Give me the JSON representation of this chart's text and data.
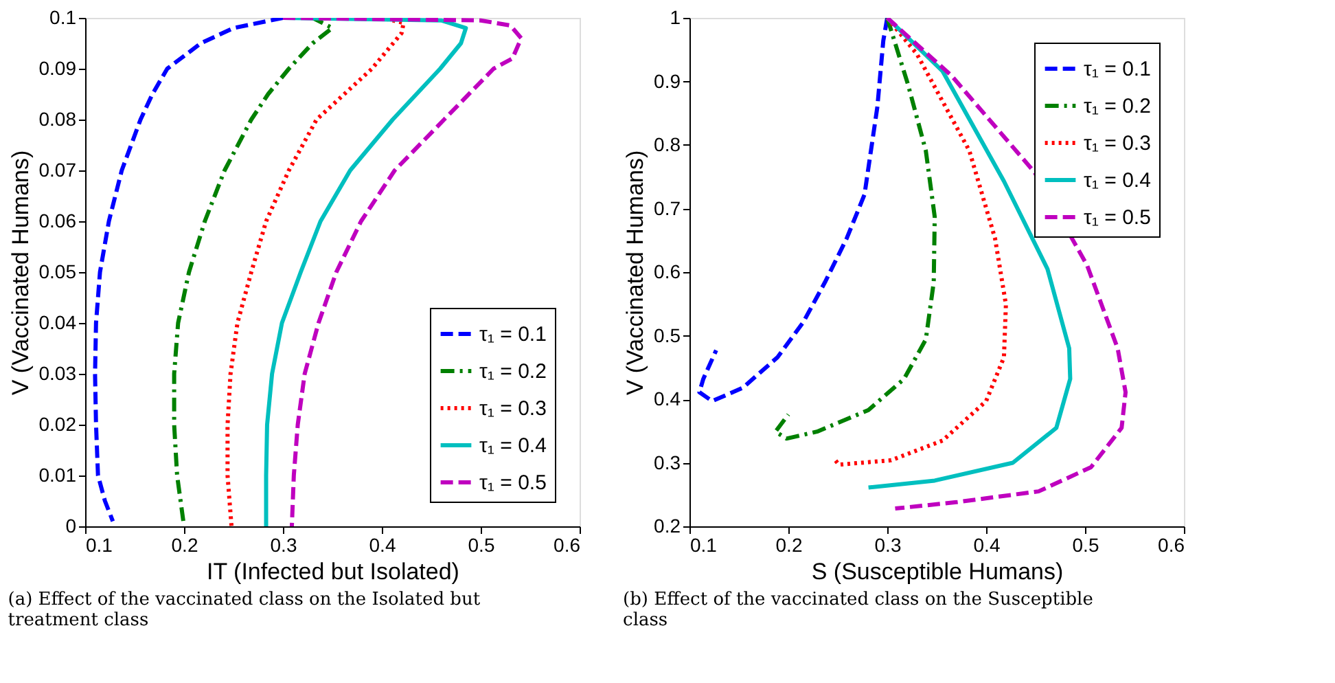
{
  "chart_data": [
    {
      "type": "line",
      "xlabel": "IT (Infected but Isolated)",
      "ylabel": "V (Vaccinated Humans)",
      "xlim": [
        0.1,
        0.6
      ],
      "ylim": [
        0,
        0.1
      ],
      "xticks": [
        0.1,
        0.2,
        0.3,
        0.4,
        0.5,
        0.6
      ],
      "yticks": [
        0,
        0.01,
        0.02,
        0.03,
        0.04,
        0.05,
        0.06,
        0.07,
        0.08,
        0.09,
        0.1
      ],
      "legend": "bottom right",
      "grid": false,
      "marker": "none",
      "annotations": [
        "(a) Effect of the vaccinated class on the Isolated but treatment class"
      ],
      "series": [
        {
          "name": "τ₁ = 0.1",
          "color": "#0000ff",
          "line_style": "dashed",
          "x": [
            0.3,
            0.25,
            0.217,
            0.183,
            0.168,
            0.156,
            0.137,
            0.124,
            0.115,
            0.111,
            0.11,
            0.111,
            0.113,
            0.12,
            0.128
          ],
          "values": [
            0.1,
            0.098,
            0.095,
            0.09,
            0.085,
            0.08,
            0.07,
            0.06,
            0.05,
            0.04,
            0.03,
            0.02,
            0.01,
            0.005,
            0.001
          ]
        },
        {
          "name": "τ₁ = 0.2",
          "color": "#008000",
          "line_style": "dashdot",
          "x": [
            0.3,
            0.33,
            0.35,
            0.33,
            0.306,
            0.285,
            0.268,
            0.241,
            0.221,
            0.205,
            0.194,
            0.19,
            0.19,
            0.193,
            0.2
          ],
          "values": [
            0.1,
            0.1,
            0.098,
            0.095,
            0.09,
            0.085,
            0.08,
            0.07,
            0.06,
            0.05,
            0.04,
            0.03,
            0.02,
            0.01,
            0
          ]
        },
        {
          "name": "τ₁ = 0.3",
          "color": "#ff0000",
          "line_style": "dotted",
          "x": [
            0.3,
            0.4,
            0.422,
            0.42,
            0.39,
            0.334,
            0.306,
            0.283,
            0.268,
            0.254,
            0.247,
            0.244,
            0.244,
            0.248
          ],
          "values": [
            0.1,
            0.1,
            0.099,
            0.097,
            0.09,
            0.08,
            0.07,
            0.06,
            0.05,
            0.04,
            0.03,
            0.02,
            0.01,
            0
          ]
        },
        {
          "name": "τ₁ = 0.4",
          "color": "#00bfbf",
          "line_style": "solid",
          "x": [
            0.3,
            0.46,
            0.485,
            0.48,
            0.459,
            0.411,
            0.368,
            0.338,
            0.318,
            0.299,
            0.289,
            0.284,
            0.283,
            0.283
          ],
          "values": [
            0.1,
            0.0995,
            0.098,
            0.095,
            0.09,
            0.08,
            0.07,
            0.06,
            0.05,
            0.04,
            0.03,
            0.02,
            0.01,
            0
          ]
        },
        {
          "name": "τ₁ = 0.5",
          "color": "#bf00bf",
          "line_style": "dashed",
          "x": [
            0.3,
            0.5,
            0.53,
            0.541,
            0.532,
            0.513,
            0.463,
            0.413,
            0.379,
            0.354,
            0.336,
            0.322,
            0.315,
            0.311,
            0.309
          ],
          "values": [
            0.1,
            0.0995,
            0.0985,
            0.096,
            0.092,
            0.09,
            0.08,
            0.07,
            0.06,
            0.05,
            0.04,
            0.03,
            0.02,
            0.01,
            0
          ]
        }
      ]
    },
    {
      "type": "line",
      "xlabel": "S (Susceptible Humans)",
      "ylabel": "V (Vaccinated Humans)",
      "xlim": [
        0.1,
        0.6
      ],
      "ylim": [
        0.2,
        1
      ],
      "xticks": [
        0.1,
        0.2,
        0.3,
        0.4,
        0.5,
        0.6
      ],
      "yticks": [
        0.2,
        0.3,
        0.4,
        0.5,
        0.6,
        0.7,
        0.8,
        0.9,
        1
      ],
      "legend": "top right",
      "grid": false,
      "marker": "none",
      "annotations": [
        "(b) Effect of the vaccinated class on the Susceptible class"
      ],
      "series": [
        {
          "name": "τ₁ = 0.1",
          "color": "#0000ff",
          "line_style": "dashed",
          "x": [
            0.3,
            0.296,
            0.29,
            0.277,
            0.259,
            0.237,
            0.215,
            0.189,
            0.154,
            0.123,
            0.11,
            0.114,
            0.127
          ],
          "values": [
            1,
            0.964,
            0.86,
            0.722,
            0.653,
            0.584,
            0.521,
            0.466,
            0.418,
            0.397,
            0.411,
            0.432,
            0.477
          ]
        },
        {
          "name": "τ₁ = 0.2",
          "color": "#008000",
          "line_style": "dashdot",
          "x": [
            0.3,
            0.321,
            0.339,
            0.348,
            0.347,
            0.339,
            0.317,
            0.281,
            0.229,
            0.198,
            0.187,
            0.2
          ],
          "values": [
            1,
            0.895,
            0.791,
            0.687,
            0.584,
            0.494,
            0.432,
            0.383,
            0.349,
            0.338,
            0.349,
            0.376
          ]
        },
        {
          "name": "τ₁ = 0.3",
          "color": "#ff0000",
          "line_style": "dotted",
          "x": [
            0.3,
            0.33,
            0.383,
            0.409,
            0.42,
            0.418,
            0.4,
            0.356,
            0.304,
            0.251,
            0.246
          ],
          "values": [
            1,
            0.943,
            0.791,
            0.653,
            0.549,
            0.466,
            0.397,
            0.335,
            0.304,
            0.297,
            0.307
          ]
        },
        {
          "name": "τ₁ = 0.4",
          "color": "#00bfbf",
          "line_style": "solid",
          "x": [
            0.3,
            0.356,
            0.418,
            0.462,
            0.484,
            0.485,
            0.471,
            0.427,
            0.348,
            0.281
          ],
          "values": [
            1,
            0.916,
            0.743,
            0.605,
            0.48,
            0.432,
            0.355,
            0.3,
            0.272,
            0.261
          ]
        },
        {
          "name": "τ₁ = 0.5",
          "color": "#bf00bf",
          "line_style": "dashed",
          "x": [
            0.3,
            0.365,
            0.449,
            0.502,
            0.533,
            0.541,
            0.537,
            0.506,
            0.453,
            0.37,
            0.308
          ],
          "values": [
            1,
            0.909,
            0.757,
            0.611,
            0.48,
            0.411,
            0.355,
            0.293,
            0.255,
            0.238,
            0.228
          ]
        }
      ]
    }
  ]
}
